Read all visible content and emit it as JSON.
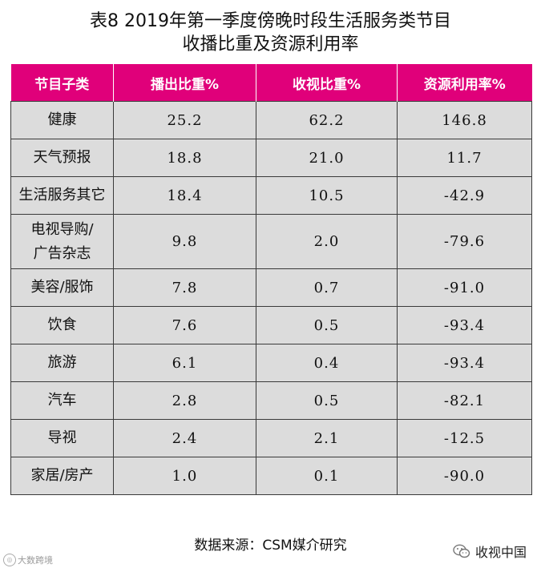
{
  "title": {
    "line1": "表8  2019年第一季度傍晚时段生活服务类节目",
    "line2": "收播比重及资源利用率"
  },
  "table": {
    "headers": [
      "节目子类",
      "播出比重%",
      "收视比重%",
      "资源利用率%"
    ],
    "rows": [
      {
        "category": "健康",
        "broadcast": "25.2",
        "viewing": "62.2",
        "utilization": "146.8"
      },
      {
        "category": "天气预报",
        "broadcast": "18.8",
        "viewing": "21.0",
        "utilization": "11.7"
      },
      {
        "category": "生活服务其它",
        "broadcast": "18.4",
        "viewing": "10.5",
        "utilization": "-42.9"
      },
      {
        "category_line1": "电视导购/",
        "category_line2": "广告杂志",
        "broadcast": "9.8",
        "viewing": "2.0",
        "utilization": "-79.6"
      },
      {
        "category": "美容/服饰",
        "broadcast": "7.8",
        "viewing": "0.7",
        "utilization": "-91.0"
      },
      {
        "category": "饮食",
        "broadcast": "7.6",
        "viewing": "0.5",
        "utilization": "-93.4"
      },
      {
        "category": "旅游",
        "broadcast": "6.1",
        "viewing": "0.4",
        "utilization": "-93.4"
      },
      {
        "category": "汽车",
        "broadcast": "2.8",
        "viewing": "0.5",
        "utilization": "-82.1"
      },
      {
        "category": "导视",
        "broadcast": "2.4",
        "viewing": "2.1",
        "utilization": "-12.5"
      },
      {
        "category": "家居/房产",
        "broadcast": "1.0",
        "viewing": "0.1",
        "utilization": "-90.0"
      }
    ]
  },
  "source": "数据来源：CSM媒介研究",
  "watermark_left": "大数跨境",
  "watermark_right": "收视中国",
  "colors": {
    "header_bg": "#e0007a",
    "cell_bg": "#dcdcdc",
    "border": "#3a3a3a"
  },
  "icons": {
    "watermark_left_logo": "circle-logo-icon",
    "watermark_right_logo": "wechat-icon"
  }
}
